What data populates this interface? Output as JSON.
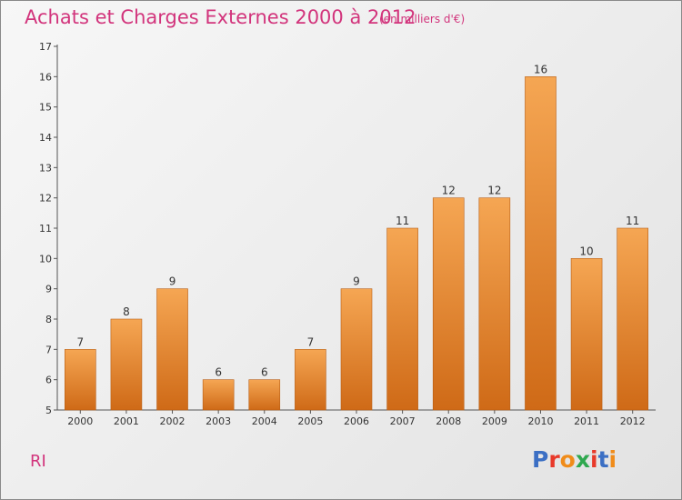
{
  "title": "Achats et Charges Externes 2000 à 2012",
  "units": "(en milliers d'€)",
  "commune": "RI",
  "logo": {
    "text": "Proxiti",
    "colors": [
      "#3b6fc4",
      "#e8392a",
      "#f08c1a",
      "#2fa84f",
      "#e8392a",
      "#3b6fc4",
      "#f08c1a"
    ]
  },
  "colors": {
    "bar_top": "#f5a653",
    "bar_bottom": "#cf6a17",
    "title": "#d2347c"
  },
  "chart_data": {
    "type": "bar",
    "categories": [
      "2000",
      "2001",
      "2002",
      "2003",
      "2004",
      "2005",
      "2006",
      "2007",
      "2008",
      "2009",
      "2010",
      "2011",
      "2012"
    ],
    "values": [
      7,
      8,
      9,
      6,
      6,
      7,
      9,
      11,
      12,
      12,
      16,
      10,
      11
    ],
    "ylim": [
      5,
      17
    ],
    "yticks": [
      5,
      6,
      7,
      8,
      9,
      10,
      11,
      12,
      13,
      14,
      15,
      16,
      17
    ],
    "grid": false,
    "legend": "none"
  }
}
